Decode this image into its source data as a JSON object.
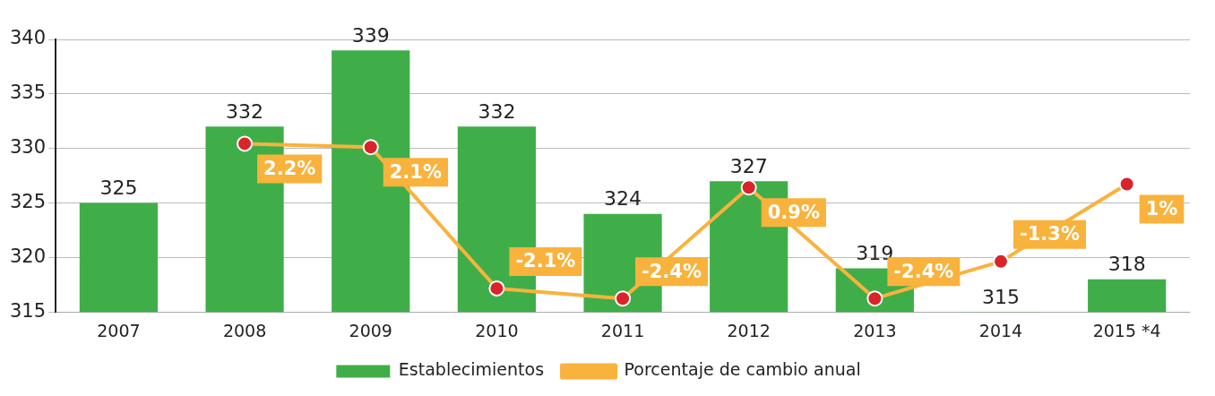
{
  "chart_data": {
    "type": "bar",
    "categories": [
      "2007",
      "2008",
      "2009",
      "2010",
      "2011",
      "2012",
      "2013",
      "2014",
      "2015 *4"
    ],
    "series": [
      {
        "name": "Establecimientos",
        "color": "#3fae49",
        "values": [
          325,
          332,
          339,
          332,
          324,
          327,
          319,
          315,
          318
        ],
        "value_labels": [
          "325",
          "332",
          "339",
          "332",
          "324",
          "327",
          "319",
          "315",
          "318"
        ]
      },
      {
        "name": "Porcentaje de cambio anual",
        "type": "line",
        "axis": "y2",
        "color": "#f9b23c",
        "marker": "circle",
        "values": [
          null,
          2.2,
          2.1,
          -2.1,
          -2.4,
          0.9,
          -2.4,
          -1.3,
          1
        ],
        "value_labels": [
          null,
          "2.2%",
          "2.1%",
          "-2.1%",
          "-2.4%",
          "0.9%",
          "-2.4%",
          "-1.3%",
          "1%"
        ]
      }
    ],
    "ylim": [
      315,
      340
    ],
    "yticks": [
      315,
      320,
      325,
      330,
      335,
      340
    ],
    "y2lim": [
      -2.8,
      5.3
    ],
    "grid": "y",
    "legend": "bottom"
  }
}
